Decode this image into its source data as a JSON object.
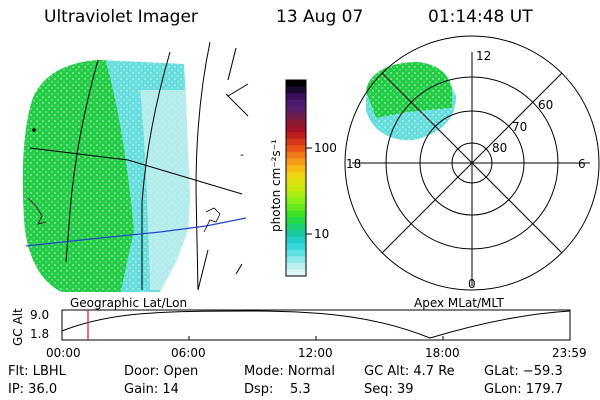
{
  "header": {
    "instrument": "Ultraviolet Imager",
    "date": "13 Aug 07",
    "time": "01:14:48 UT"
  },
  "colorbar": {
    "unit_label": "photon cm⁻²s⁻¹",
    "ticks": [
      "100",
      "10"
    ],
    "colors": [
      "#000000",
      "#1a0a2e",
      "#3a0f5e",
      "#4b1a6e",
      "#5b1e6b",
      "#6e1e4e",
      "#8a1a32",
      "#a3122a",
      "#bf1e1e",
      "#d6371a",
      "#e8561a",
      "#f07818",
      "#f59a16",
      "#f5b814",
      "#f2d012",
      "#e0e010",
      "#c8e810",
      "#a8ee10",
      "#88ee18",
      "#66e81e",
      "#3ee028",
      "#22d848",
      "#1ad070",
      "#1ac8a0",
      "#20d0c8",
      "#38d8d8",
      "#60e0e0",
      "#90e8e8",
      "#bbf0f0",
      "#ddf6f6"
    ]
  },
  "left_map": {
    "caption": "Geographic Lat/Lon",
    "green": "#22cc44",
    "cyan": "#66dddd"
  },
  "right_map": {
    "caption": "Apex MLat/MLT",
    "mlt_labels": [
      "12",
      "18",
      "6",
      "0"
    ],
    "mlat_labels": [
      "60",
      "70",
      "80"
    ]
  },
  "altitude_plot": {
    "ylabel": "GC Alt",
    "yticks": [
      "9.0",
      "1.8"
    ],
    "xticks": [
      "00:00",
      "06:00",
      "12:00",
      "18:00",
      "23:59"
    ],
    "marker_color": "#cc2222"
  },
  "status": {
    "flt": "Flt: LBHL",
    "ip": "IP: 36.0",
    "door": "Door: Open",
    "gain": "Gain: 14",
    "mode": "Mode: Normal",
    "dsp": "Dsp:    5.3",
    "gc_alt": "GC Alt: 4.7 Re",
    "seq": "Seq: 39",
    "glat": "GLat: −59.3",
    "glon": "GLon: 179.7"
  }
}
